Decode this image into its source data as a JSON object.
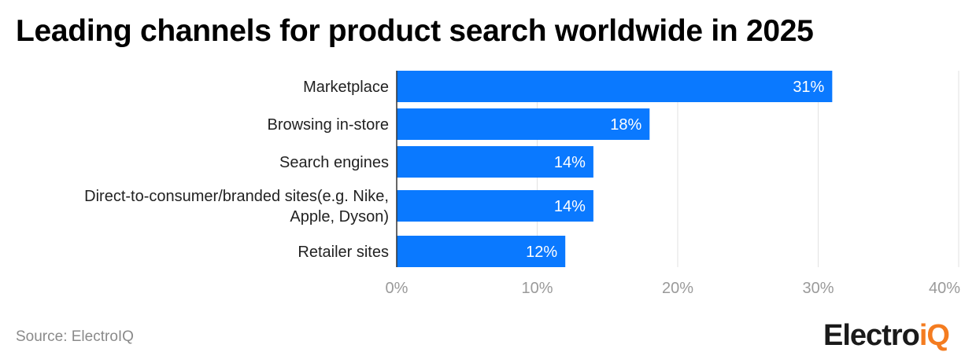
{
  "chart_data": {
    "type": "bar",
    "orientation": "horizontal",
    "title": "Leading channels for product search worldwide in 2025",
    "categories": [
      [
        "Marketplace"
      ],
      [
        "Browsing in-store"
      ],
      [
        "Search engines"
      ],
      [
        "Direct-to-consumer/branded sites(e.g. Nike,",
        "Apple, Dyson)"
      ],
      [
        "Retailer sites"
      ]
    ],
    "values": [
      31,
      18,
      14,
      14,
      12
    ],
    "value_labels": [
      "31%",
      "18%",
      "14%",
      "14%",
      "12%"
    ],
    "xlim": [
      0,
      40
    ],
    "xticks": [
      0,
      10,
      20,
      30,
      40
    ],
    "xtick_labels": [
      "0%",
      "10%",
      "20%",
      "30%",
      "40%"
    ],
    "bar_color": "#0a79ff",
    "grid": true
  },
  "footer": {
    "source": "Source: ElectroIQ",
    "logo_part1": "Electro",
    "logo_part2": "iQ"
  },
  "colors": {
    "logo_dark": "#1a1a1a",
    "logo_accent": "#f47c20"
  }
}
